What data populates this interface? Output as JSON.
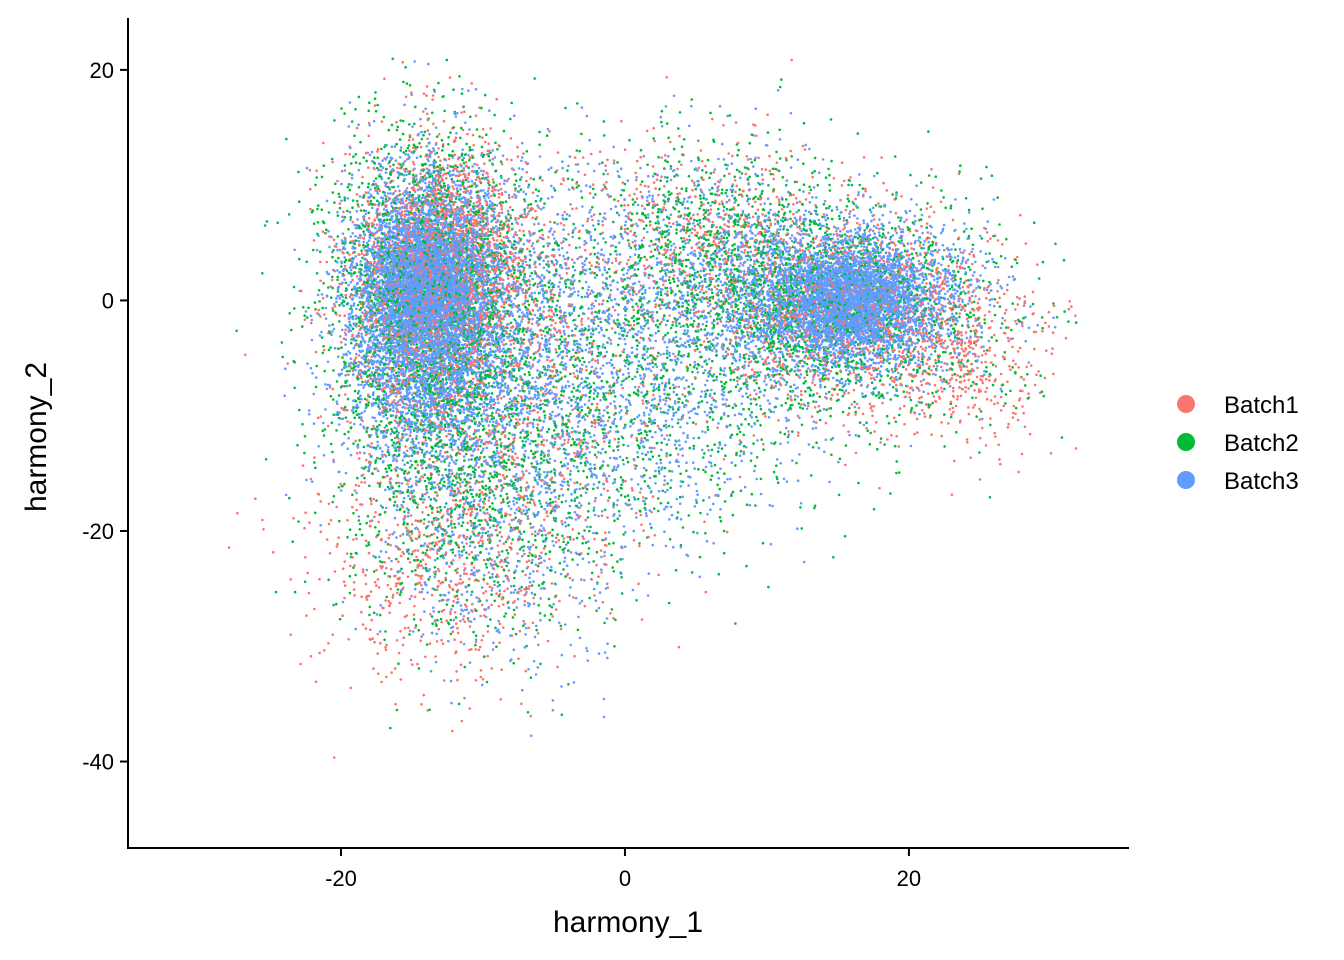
{
  "chart_data": {
    "type": "scatter",
    "title": "",
    "xlabel": "harmony_1",
    "ylabel": "harmony_2",
    "xlim": [
      -35,
      35.5
    ],
    "ylim": [
      -47.5,
      24.5
    ],
    "x_ticks": [
      -20,
      0,
      20
    ],
    "y_ticks": [
      -40,
      -20,
      0,
      20
    ],
    "x_tick_labels": [
      "-20",
      "0",
      "20"
    ],
    "y_tick_labels": [
      "-40",
      "-20",
      "0",
      "20"
    ],
    "grid": false,
    "legend_position": "right",
    "series": [
      {
        "name": "Batch1",
        "color": "#F8766D",
        "clusters": [
          {
            "cx": -13.5,
            "cy": 1,
            "sx": 3.2,
            "sy": 6.5,
            "n": 2000
          },
          {
            "cx": -11,
            "cy": 5,
            "sx": 3,
            "sy": 3.5,
            "n": 500
          },
          {
            "cx": -13,
            "cy": -22,
            "sx": 4.5,
            "sy": 6,
            "n": 650
          },
          {
            "cx": -6,
            "cy": -8,
            "sx": 5.5,
            "sy": 8,
            "n": 700
          },
          {
            "cx": 16,
            "cy": -1,
            "sx": 5,
            "sy": 4.5,
            "n": 1300
          },
          {
            "cx": 24,
            "cy": -5,
            "sx": 3,
            "sy": 4,
            "n": 350
          },
          {
            "cx": 5,
            "cy": 5,
            "sx": 4.5,
            "sy": 4.5,
            "n": 500
          }
        ]
      },
      {
        "name": "Batch2",
        "color": "#00BA38",
        "clusters": [
          {
            "cx": -14,
            "cy": 0,
            "sx": 3.8,
            "sy": 7.5,
            "n": 2400
          },
          {
            "cx": -11,
            "cy": -18,
            "sx": 5,
            "sy": 6.5,
            "n": 750
          },
          {
            "cx": -5,
            "cy": -6,
            "sx": 6,
            "sy": 8,
            "n": 750
          },
          {
            "cx": 15,
            "cy": -1,
            "sx": 6,
            "sy": 5,
            "n": 1700
          },
          {
            "cx": 6,
            "cy": 5,
            "sx": 4.5,
            "sy": 4.5,
            "n": 650
          },
          {
            "cx": 3,
            "cy": -10,
            "sx": 6,
            "sy": 6,
            "n": 350
          }
        ]
      },
      {
        "name": "Batch3",
        "color": "#619CFF",
        "clusters": [
          {
            "cx": -14,
            "cy": -1,
            "sx": 2.8,
            "sy": 6,
            "n": 5000
          },
          {
            "cx": -14,
            "cy": 2,
            "sx": 2,
            "sy": 3,
            "n": 2000
          },
          {
            "cx": -7,
            "cy": -5,
            "sx": 5.5,
            "sy": 7.5,
            "n": 1700
          },
          {
            "cx": -9,
            "cy": -20,
            "sx": 4.5,
            "sy": 6,
            "n": 550
          },
          {
            "cx": 15.5,
            "cy": 0,
            "sx": 4.2,
            "sy": 3.3,
            "n": 3600
          },
          {
            "cx": 16,
            "cy": 0,
            "sx": 2.2,
            "sy": 2,
            "n": 1500
          },
          {
            "cx": 6,
            "cy": 2,
            "sx": 5.5,
            "sy": 5.5,
            "n": 900
          },
          {
            "cx": 3,
            "cy": -10,
            "sx": 5.5,
            "sy": 5.5,
            "n": 500
          }
        ]
      }
    ]
  }
}
